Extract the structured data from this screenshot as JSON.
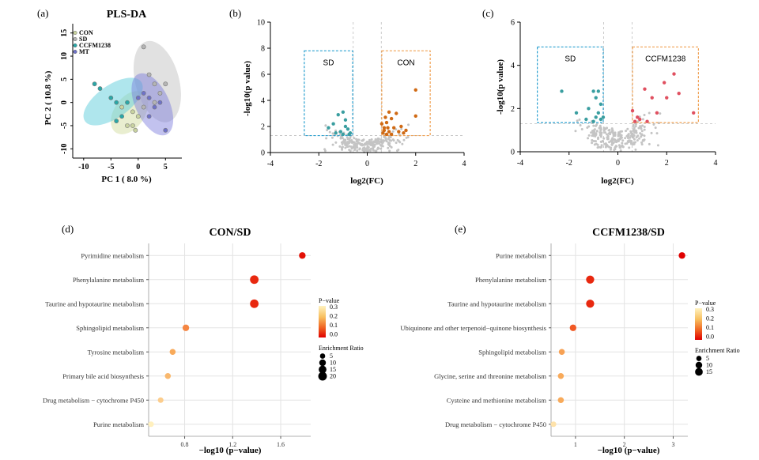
{
  "chart_data": [
    {
      "id": "a",
      "panel_label": "(a)",
      "type": "scatter",
      "title": "PLS-DA",
      "xlabel": "PC 1 ( 8.0 %)",
      "ylabel": "PC 2 ( 10.8 %)",
      "xlim": [
        -12,
        8
      ],
      "ylim": [
        -12,
        17
      ],
      "xticks": [
        -10,
        -5,
        0,
        5
      ],
      "yticks": [
        -10,
        -5,
        0,
        5,
        10,
        15
      ],
      "legend": [
        {
          "name": "CON",
          "color": "#c9d3a0"
        },
        {
          "name": "SD",
          "color": "#b5b5b5"
        },
        {
          "name": "CCFM1238",
          "color": "#2aa7a7"
        },
        {
          "name": "MT",
          "color": "#6f72c8"
        }
      ],
      "groups": [
        {
          "name": "CON",
          "color": "#c9d3a0",
          "fill": "rgba(215,224,170,0.55)",
          "ellipse": {
            "cx": -1.6,
            "cy": -2.2,
            "rx": 2.8,
            "ry": 5.2,
            "angle": 35
          },
          "points": [
            [
              -1,
              -5
            ],
            [
              -0.5,
              -6
            ],
            [
              -2,
              -5
            ],
            [
              0,
              -3
            ],
            [
              -3,
              -1
            ],
            [
              -1,
              -2
            ]
          ]
        },
        {
          "name": "SD",
          "color": "#b5b5b5",
          "fill": "rgba(200,200,200,0.55)",
          "ellipse": {
            "cx": 3.5,
            "cy": 4.5,
            "rx": 4.0,
            "ry": 9.0,
            "angle": -15
          },
          "points": [
            [
              1,
              12
            ],
            [
              3,
              4
            ],
            [
              5,
              4
            ],
            [
              2,
              6
            ],
            [
              4,
              2
            ],
            [
              1,
              -1
            ],
            [
              3,
              0
            ]
          ]
        },
        {
          "name": "CCFM1238",
          "color": "#2aa7a7",
          "fill": "rgba(95,205,220,0.5)",
          "ellipse": {
            "cx": -4.6,
            "cy": 0.2,
            "rx": 3.0,
            "ry": 7.4,
            "angle": 55
          },
          "points": [
            [
              -8,
              4
            ],
            [
              -7,
              3
            ],
            [
              -5,
              1
            ],
            [
              -4,
              0
            ],
            [
              -3,
              -3
            ],
            [
              -2,
              0
            ],
            [
              -4,
              -4
            ]
          ]
        },
        {
          "name": "MT",
          "color": "#6f72c8",
          "fill": "rgba(120,120,220,0.45)",
          "ellipse": {
            "cx": 2.6,
            "cy": -0.4,
            "rx": 3.1,
            "ry": 7.2,
            "angle": -25
          },
          "points": [
            [
              1,
              2
            ],
            [
              2,
              1
            ],
            [
              3,
              -1
            ],
            [
              4,
              0
            ],
            [
              5,
              -6
            ],
            [
              2,
              -3
            ],
            [
              0,
              1
            ]
          ]
        }
      ]
    },
    {
      "id": "b",
      "panel_label": "(b)",
      "type": "scatter",
      "title": "",
      "xlabel": "log2(FC)",
      "ylabel": "-log10(p value)",
      "xlim": [
        -4,
        4
      ],
      "ylim": [
        0,
        10
      ],
      "xticks": [
        -4,
        -2,
        0,
        2,
        4
      ],
      "yticks": [
        0,
        2,
        4,
        6,
        8,
        10
      ],
      "thresholds": {
        "x": [
          -0.58,
          0.58
        ],
        "y": 1.3
      },
      "boxes": [
        {
          "label": "SD",
          "color": "#2aa0d0",
          "x": [
            -2.6,
            -0.6
          ],
          "y": [
            1.3,
            7.8
          ]
        },
        {
          "label": "CON",
          "color": "#f0a050",
          "x": [
            0.6,
            2.6
          ],
          "y": [
            1.3,
            7.8
          ]
        }
      ],
      "series": [
        {
          "name": "SD",
          "color": "#3a9ea0",
          "points": [
            [
              -1.2,
              2.9
            ],
            [
              -1.0,
              3.1
            ],
            [
              -1.4,
              2.2
            ],
            [
              -0.9,
              2.0
            ],
            [
              -1.1,
              1.6
            ],
            [
              -0.8,
              1.8
            ],
            [
              -1.3,
              1.5
            ],
            [
              -0.7,
              1.5
            ],
            [
              -1.6,
              1.9
            ],
            [
              -0.9,
              2.5
            ],
            [
              -0.75,
              1.4
            ],
            [
              -1.0,
              1.4
            ]
          ]
        },
        {
          "name": "CON",
          "color": "#d06a14",
          "points": [
            [
              2.0,
              4.8
            ],
            [
              2.0,
              2.8
            ],
            [
              1.4,
              2.0
            ],
            [
              1.3,
              1.6
            ],
            [
              1.0,
              2.6
            ],
            [
              0.9,
              3.1
            ],
            [
              0.8,
              2.3
            ],
            [
              0.7,
              1.9
            ],
            [
              0.65,
              1.5
            ],
            [
              0.9,
              1.6
            ],
            [
              1.1,
              1.9
            ],
            [
              0.75,
              2.7
            ],
            [
              0.8,
              1.4
            ],
            [
              1.5,
              1.5
            ],
            [
              1.2,
              3.0
            ],
            [
              0.6,
              2.2
            ],
            [
              1.0,
              1.4
            ],
            [
              0.7,
              1.7
            ],
            [
              0.85,
              1.9
            ],
            [
              1.6,
              1.7
            ]
          ]
        }
      ]
    },
    {
      "id": "c",
      "panel_label": "(c)",
      "type": "scatter",
      "title": "",
      "xlabel": "log2(FC)",
      "ylabel": "-log10(p value)",
      "xlim": [
        -4,
        4
      ],
      "ylim": [
        0,
        6
      ],
      "xticks": [
        -4,
        -2,
        0,
        2,
        4
      ],
      "yticks": [
        0,
        2,
        4,
        6
      ],
      "thresholds": {
        "x": [
          -0.58,
          0.58
        ],
        "y": 1.3
      },
      "boxes": [
        {
          "label": "SD",
          "color": "#2aa0d0",
          "x": [
            -3.3,
            -0.6
          ],
          "y": [
            1.35,
            4.85
          ]
        },
        {
          "label": "CCFM1238",
          "color": "#f0a050",
          "x": [
            0.6,
            3.3
          ],
          "y": [
            1.35,
            4.85
          ]
        }
      ],
      "series": [
        {
          "name": "SD",
          "color": "#3a9ea0",
          "points": [
            [
              -2.3,
              2.8
            ],
            [
              -1.0,
              2.8
            ],
            [
              -0.8,
              2.8
            ],
            [
              -0.9,
              2.5
            ],
            [
              -0.7,
              2.2
            ],
            [
              -1.2,
              2.0
            ],
            [
              -0.8,
              1.8
            ],
            [
              -0.9,
              1.6
            ],
            [
              -1.3,
              1.5
            ],
            [
              -1.7,
              1.8
            ],
            [
              -0.7,
              1.5
            ],
            [
              -1.0,
              1.4
            ],
            [
              -0.6,
              1.6
            ]
          ]
        },
        {
          "name": "CCFM1238",
          "color": "#e05060",
          "points": [
            [
              2.3,
              3.6
            ],
            [
              1.9,
              3.2
            ],
            [
              2.5,
              2.7
            ],
            [
              2.0,
              2.5
            ],
            [
              1.4,
              2.5
            ],
            [
              1.1,
              2.9
            ],
            [
              3.1,
              1.8
            ],
            [
              1.6,
              1.8
            ],
            [
              0.8,
              1.6
            ],
            [
              0.7,
              1.4
            ],
            [
              0.6,
              1.9
            ],
            [
              1.2,
              1.4
            ],
            [
              0.9,
              1.5
            ]
          ]
        }
      ]
    },
    {
      "id": "d",
      "panel_label": "(d)",
      "type": "scatter",
      "title": "CON/SD",
      "xlabel": "−log10 (p−value)",
      "xlim": [
        0.5,
        1.85
      ],
      "xticks": [
        0.8,
        1.2,
        1.6
      ],
      "xticklabels": [
        "0.8",
        "1.2",
        "1.6"
      ],
      "categories": [
        "Pyrimidine metabolism",
        "Phenylalanine metabolism",
        "Taurine and hypotaurine metabolism",
        "Sphingolipid metabolism",
        "Tyrosine metabolism",
        "Primary bile acid biosynthesis",
        "Drug metabolism − cytochrome P450",
        "Purine metabolism"
      ],
      "x": [
        1.78,
        1.38,
        1.38,
        0.81,
        0.7,
        0.66,
        0.6,
        0.52
      ],
      "p_value": [
        0.02,
        0.05,
        0.05,
        0.16,
        0.2,
        0.22,
        0.25,
        0.3
      ],
      "enrichment_ratio": [
        8,
        16,
        16,
        8,
        6,
        6,
        5,
        5
      ],
      "legend_p": {
        "title": "P−value",
        "ticks": [
          "0.3",
          "0.2",
          "0.1",
          "0.0"
        ]
      },
      "legend_size": {
        "title": "Enrichment Ratio",
        "ticks": [
          "5",
          "10",
          "15",
          "20"
        ]
      }
    },
    {
      "id": "e",
      "panel_label": "(e)",
      "type": "scatter",
      "title": "CCFM1238/SD",
      "xlabel": "−log10 (p−value)",
      "xlim": [
        0.5,
        3.3
      ],
      "xticks": [
        1,
        2,
        3
      ],
      "xticklabels": [
        "1",
        "2",
        "3"
      ],
      "categories": [
        "Purine metabolism",
        "Phenylalanine metabolism",
        "Taurine and hypotaurine metabolism",
        "Ubiquinone and other terpenoid−quinone biosynthesis",
        "Sphingolipid metabolism",
        "Glycine, serine and threonine metabolism",
        "Cysteine and methionine metabolism",
        "Drug metabolism − cytochrome P450"
      ],
      "x": [
        3.18,
        1.3,
        1.3,
        0.95,
        0.72,
        0.7,
        0.7,
        0.55
      ],
      "p_value": [
        0.0,
        0.05,
        0.05,
        0.11,
        0.19,
        0.2,
        0.2,
        0.28
      ],
      "enrichment_ratio": [
        8,
        14,
        14,
        8,
        6,
        6,
        6,
        5
      ],
      "legend_p": {
        "title": "P−value",
        "ticks": [
          "0.3",
          "0.2",
          "0.1",
          "0.0"
        ]
      },
      "legend_size": {
        "title": "Enrichment Ratio",
        "ticks": [
          "5",
          "10",
          "15"
        ]
      }
    }
  ]
}
